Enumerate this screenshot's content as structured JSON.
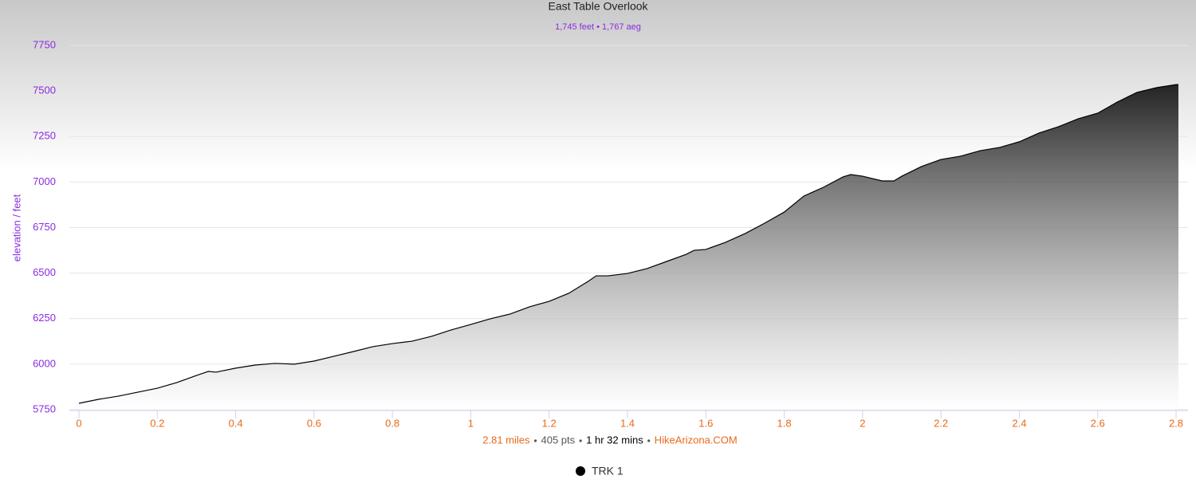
{
  "chart_data": {
    "type": "area",
    "title": "East Table Overlook",
    "subtitle": "1,745 feet • 1,767 aeg",
    "y_label": "elevation / feet",
    "xlim": [
      0,
      2.8
    ],
    "xticks": [
      0,
      0.2,
      0.4,
      0.6,
      0.8,
      1,
      1.2,
      1.4,
      1.6,
      1.8,
      2,
      2.2,
      2.4,
      2.6,
      2.8
    ],
    "ylim": [
      5750,
      7750
    ],
    "yticks": [
      5750,
      6000,
      6250,
      6500,
      6750,
      7000,
      7250,
      7500,
      7750
    ],
    "grid": true,
    "legend": "bottom",
    "x": [
      0,
      0.05,
      0.1,
      0.15,
      0.2,
      0.25,
      0.3,
      0.33,
      0.35,
      0.4,
      0.45,
      0.5,
      0.55,
      0.6,
      0.65,
      0.7,
      0.75,
      0.8,
      0.85,
      0.9,
      0.95,
      1.0,
      1.05,
      1.1,
      1.15,
      1.2,
      1.25,
      1.3,
      1.32,
      1.35,
      1.4,
      1.45,
      1.5,
      1.55,
      1.57,
      1.6,
      1.65,
      1.7,
      1.75,
      1.8,
      1.85,
      1.9,
      1.95,
      1.97,
      2.0,
      2.05,
      2.08,
      2.1,
      2.15,
      2.2,
      2.25,
      2.3,
      2.35,
      2.4,
      2.45,
      2.5,
      2.55,
      2.6,
      2.65,
      2.7,
      2.75,
      2.8,
      2.806
    ],
    "series": [
      {
        "name": "TRK 1",
        "color": "#000000",
        "values": [
          5785,
          5807,
          5824,
          5846,
          5868,
          5899,
          5938,
          5960,
          5956,
          5978,
          5995,
          6004,
          6000,
          6017,
          6043,
          6069,
          6096,
          6113,
          6126,
          6153,
          6188,
          6218,
          6249,
          6275,
          6315,
          6345,
          6389,
          6455,
          6485,
          6485,
          6498,
          6525,
          6564,
          6603,
          6625,
          6630,
          6669,
          6717,
          6774,
          6835,
          6923,
          6971,
          7028,
          7041,
          7032,
          7006,
          7006,
          7032,
          7085,
          7124,
          7142,
          7172,
          7190,
          7221,
          7269,
          7304,
          7347,
          7378,
          7439,
          7492,
          7518,
          7535,
          7535
        ]
      }
    ],
    "footer": [
      {
        "text": "2.81 miles",
        "color": "#e8691b"
      },
      {
        "text": "405 pts",
        "color": "#555555"
      },
      {
        "text": "1 hr 32 mins",
        "color": "#000000"
      },
      {
        "text": "HikeArizona.COM",
        "color": "#e8691b"
      }
    ]
  }
}
